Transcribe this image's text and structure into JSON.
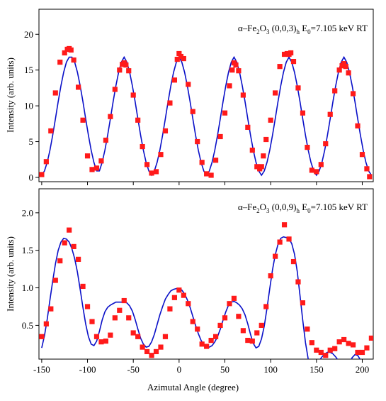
{
  "chart_data": [
    {
      "type": "scatter",
      "panel": "top",
      "annotation": {
        "prefix": "α–Fe",
        "sub1": "2",
        "mid1": "O",
        "sub2": "3",
        "mid2": " (0,0,3)",
        "sub3": "h",
        "mid3": " E",
        "sub4": "0",
        "suffix": "=7.105 keV RT"
      },
      "xlabel": "",
      "ylabel": "Intensity (arb. units)",
      "xlim": [
        -153,
        212
      ],
      "ylim": [
        -0.6,
        23.5
      ],
      "yticks": [
        0,
        5,
        10,
        15,
        20
      ],
      "grid": false,
      "series": [
        {
          "kind": "points",
          "color": "#ff1a1a",
          "x": [
            -150,
            -145,
            -140,
            -135,
            -130,
            -125,
            -122,
            -120,
            -118,
            -115,
            -110,
            -105,
            -100,
            -95,
            -90,
            -85,
            -80,
            -75,
            -70,
            -65,
            -62,
            -60,
            -58,
            -55,
            -50,
            -45,
            -40,
            -35,
            -30,
            -25,
            -20,
            -15,
            -10,
            -5,
            -2,
            0,
            2,
            5,
            10,
            15,
            20,
            25,
            30,
            35,
            40,
            45,
            50,
            55,
            58,
            60,
            62,
            65,
            70,
            75,
            80,
            85,
            88,
            90,
            92,
            95,
            100,
            105,
            110,
            115,
            118,
            120,
            122,
            125,
            130,
            135,
            140,
            145,
            150,
            155,
            160,
            165,
            170,
            175,
            178,
            180,
            182,
            185,
            190,
            195,
            200,
            205,
            208
          ],
          "y": [
            0.4,
            2.2,
            6.5,
            11.8,
            16.1,
            17.4,
            17.9,
            18.0,
            17.8,
            16.4,
            12.6,
            8.0,
            3.0,
            1.1,
            1.3,
            2.3,
            5.2,
            8.5,
            12.3,
            15.0,
            15.8,
            16.0,
            15.7,
            14.9,
            11.5,
            8.0,
            4.3,
            1.8,
            0.6,
            0.8,
            3.2,
            6.5,
            10.4,
            13.6,
            16.5,
            17.3,
            16.9,
            16.6,
            13.0,
            9.2,
            5.0,
            2.1,
            0.5,
            0.3,
            2.4,
            5.7,
            9.0,
            12.8,
            15.0,
            16.0,
            15.7,
            14.9,
            11.5,
            7.0,
            3.8,
            1.5,
            1.2,
            1.5,
            3.0,
            5.3,
            8.0,
            11.8,
            15.5,
            17.2,
            17.3,
            17.2,
            17.4,
            16.2,
            12.5,
            9.0,
            4.2,
            1.0,
            0.8,
            1.8,
            4.7,
            8.8,
            12.1,
            15.0,
            15.6,
            15.9,
            15.5,
            14.6,
            11.7,
            7.2,
            3.2,
            1.2,
            0.1
          ]
        },
        {
          "kind": "line",
          "color": "#0a10c8",
          "x": [
            -150,
            -147,
            -144,
            -141,
            -138,
            -135,
            -132,
            -129,
            -126,
            -123,
            -120,
            -117,
            -114,
            -111,
            -108,
            -105,
            -102,
            -99,
            -96,
            -93,
            -90,
            -87,
            -84,
            -81,
            -78,
            -75,
            -72,
            -69,
            -66,
            -63,
            -60,
            -57,
            -54,
            -51,
            -48,
            -45,
            -42,
            -39,
            -36,
            -33,
            -30,
            -27,
            -24,
            -21,
            -18,
            -15,
            -12,
            -9,
            -6,
            -3,
            0,
            3,
            6,
            9,
            12,
            15,
            18,
            21,
            24,
            27,
            30,
            33,
            36,
            39,
            42,
            45,
            48,
            51,
            54,
            57,
            60,
            63,
            66,
            69,
            72,
            75,
            78,
            81,
            84,
            87,
            90,
            93,
            96,
            99,
            102,
            105,
            108,
            111,
            114,
            117,
            120,
            123,
            126,
            129,
            132,
            135,
            138,
            141,
            144,
            147,
            150,
            153,
            156,
            159,
            162,
            165,
            168,
            171,
            174,
            177,
            180,
            183,
            186,
            189,
            192,
            195,
            198,
            201,
            204,
            207,
            210
          ],
          "y": [
            0.3,
            0.9,
            2.1,
            3.8,
            5.9,
            8.2,
            10.6,
            12.8,
            14.7,
            16.1,
            16.8,
            16.8,
            16.1,
            14.7,
            12.8,
            10.6,
            8.2,
            5.9,
            3.8,
            2.1,
            0.9,
            0.9,
            2.1,
            3.8,
            5.9,
            8.2,
            10.6,
            12.8,
            14.7,
            16.1,
            16.8,
            16.1,
            14.7,
            12.8,
            10.6,
            8.2,
            5.9,
            3.8,
            2.1,
            0.9,
            0.3,
            0.9,
            2.1,
            3.8,
            5.9,
            8.2,
            10.6,
            12.8,
            14.7,
            16.1,
            16.8,
            16.1,
            14.7,
            12.8,
            10.6,
            8.2,
            5.9,
            3.8,
            2.1,
            0.9,
            0.3,
            0.9,
            2.1,
            3.8,
            5.9,
            8.2,
            10.6,
            12.8,
            14.7,
            16.1,
            16.8,
            16.1,
            14.7,
            12.8,
            10.6,
            8.2,
            5.9,
            3.8,
            2.1,
            0.9,
            0.3,
            0.9,
            2.1,
            3.8,
            5.9,
            8.2,
            10.6,
            12.8,
            14.7,
            16.1,
            16.8,
            16.1,
            14.7,
            12.8,
            10.6,
            8.2,
            5.9,
            3.8,
            2.1,
            0.9,
            0.3,
            0.9,
            2.1,
            3.8,
            5.9,
            8.2,
            10.6,
            12.8,
            14.7,
            16.1,
            16.8,
            16.1,
            14.7,
            12.8,
            10.6,
            8.2,
            5.9,
            3.8,
            2.1,
            0.9,
            0.3
          ]
        }
      ]
    },
    {
      "type": "scatter",
      "panel": "bottom",
      "annotation": {
        "prefix": "α–Fe",
        "sub1": "2",
        "mid1": "O",
        "sub2": "3",
        "mid2": " (0,0,9)",
        "sub3": "h",
        "mid3": " E",
        "sub4": "0",
        "suffix": "=7.105 keV RT"
      },
      "xlabel": "Azimutal Angle (degree)",
      "ylabel": "Intensity (arb. units)",
      "xlim": [
        -153,
        212
      ],
      "ylim": [
        0.05,
        2.32
      ],
      "yticks": [
        0.5,
        1.0,
        1.5,
        2.0
      ],
      "yticklabels": [
        "0.5",
        "1.0",
        "1.5",
        "2.0"
      ],
      "xticks": [
        -150,
        -100,
        -50,
        0,
        50,
        100,
        150,
        200
      ],
      "grid": false,
      "series": [
        {
          "kind": "points",
          "color": "#ff1a1a",
          "x": [
            -150,
            -145,
            -140,
            -135,
            -130,
            -125,
            -120,
            -115,
            -110,
            -105,
            -100,
            -95,
            -90,
            -85,
            -80,
            -75,
            -70,
            -65,
            -60,
            -55,
            -50,
            -45,
            -40,
            -35,
            -30,
            -25,
            -20,
            -15,
            -10,
            -5,
            0,
            5,
            10,
            15,
            20,
            25,
            30,
            35,
            40,
            45,
            50,
            55,
            60,
            65,
            70,
            75,
            80,
            85,
            90,
            95,
            100,
            105,
            110,
            115,
            120,
            125,
            130,
            135,
            140,
            145,
            150,
            155,
            160,
            165,
            170,
            175,
            180,
            185,
            190,
            195,
            200,
            205,
            210
          ],
          "y": [
            0.35,
            0.52,
            0.72,
            1.1,
            1.36,
            1.6,
            1.77,
            1.55,
            1.38,
            1.02,
            0.75,
            0.55,
            0.35,
            0.28,
            0.29,
            0.37,
            0.6,
            0.7,
            0.83,
            0.6,
            0.4,
            0.35,
            0.21,
            0.15,
            0.1,
            0.15,
            0.21,
            0.35,
            0.72,
            0.87,
            0.97,
            0.9,
            0.79,
            0.55,
            0.45,
            0.25,
            0.22,
            0.3,
            0.35,
            0.5,
            0.6,
            0.79,
            0.86,
            0.62,
            0.43,
            0.3,
            0.29,
            0.4,
            0.5,
            0.75,
            1.16,
            1.42,
            1.61,
            1.84,
            1.65,
            1.35,
            1.08,
            0.8,
            0.45,
            0.27,
            0.17,
            0.14,
            0.1,
            0.17,
            0.19,
            0.28,
            0.31,
            0.26,
            0.24,
            0.14,
            0.14,
            0.2,
            0.33
          ]
        },
        {
          "kind": "line",
          "color": "#0a10c8",
          "x": [
            -150,
            -147,
            -144,
            -141,
            -138,
            -135,
            -132,
            -129,
            -126,
            -123,
            -120,
            -117,
            -114,
            -111,
            -108,
            -105,
            -102,
            -99,
            -96,
            -93,
            -90,
            -87,
            -84,
            -81,
            -78,
            -75,
            -72,
            -69,
            -66,
            -63,
            -60,
            -57,
            -54,
            -51,
            -48,
            -45,
            -42,
            -39,
            -36,
            -33,
            -30,
            -27,
            -24,
            -21,
            -18,
            -15,
            -12,
            -9,
            -6,
            -3,
            0,
            3,
            6,
            9,
            12,
            15,
            18,
            21,
            24,
            27,
            30,
            33,
            36,
            39,
            42,
            45,
            48,
            51,
            54,
            57,
            60,
            63,
            66,
            69,
            72,
            75,
            78,
            81,
            84,
            87,
            90,
            93,
            96,
            99,
            102,
            105,
            108,
            111,
            114,
            117,
            120,
            123,
            126,
            129,
            132,
            135,
            138,
            141,
            144,
            147,
            150,
            153,
            156,
            159,
            162,
            165,
            168,
            171,
            174,
            177,
            180,
            183,
            186,
            189,
            192,
            195,
            198,
            201,
            204,
            207,
            210
          ],
          "y": [
            0.2,
            0.36,
            0.58,
            0.84,
            1.09,
            1.32,
            1.5,
            1.61,
            1.66,
            1.65,
            1.61,
            1.52,
            1.39,
            1.21,
            0.98,
            0.74,
            0.52,
            0.35,
            0.25,
            0.23,
            0.29,
            0.42,
            0.57,
            0.68,
            0.74,
            0.77,
            0.79,
            0.81,
            0.81,
            0.81,
            0.81,
            0.8,
            0.76,
            0.69,
            0.58,
            0.45,
            0.33,
            0.25,
            0.21,
            0.22,
            0.28,
            0.38,
            0.51,
            0.64,
            0.75,
            0.85,
            0.91,
            0.96,
            0.98,
            0.99,
            0.99,
            0.97,
            0.92,
            0.84,
            0.74,
            0.62,
            0.5,
            0.39,
            0.3,
            0.24,
            0.21,
            0.21,
            0.23,
            0.28,
            0.35,
            0.45,
            0.57,
            0.68,
            0.77,
            0.81,
            0.82,
            0.8,
            0.77,
            0.72,
            0.64,
            0.52,
            0.38,
            0.26,
            0.2,
            0.22,
            0.32,
            0.49,
            0.73,
            0.99,
            1.24,
            1.44,
            1.58,
            1.66,
            1.68,
            1.67,
            1.65,
            1.59,
            1.45,
            1.22,
            0.9,
            0.57,
            0.27,
            0.05,
            -0.06,
            -0.06,
            -0.02,
            0.03,
            0.08,
            0.12,
            0.14,
            0.14,
            0.12,
            0.08,
            0.03,
            -0.03,
            -0.07,
            -0.06,
            0.0,
            0.07,
            0.11,
            0.1,
            0.04,
            -0.05,
            -0.11,
            -0.12,
            -0.1
          ]
        }
      ]
    }
  ]
}
